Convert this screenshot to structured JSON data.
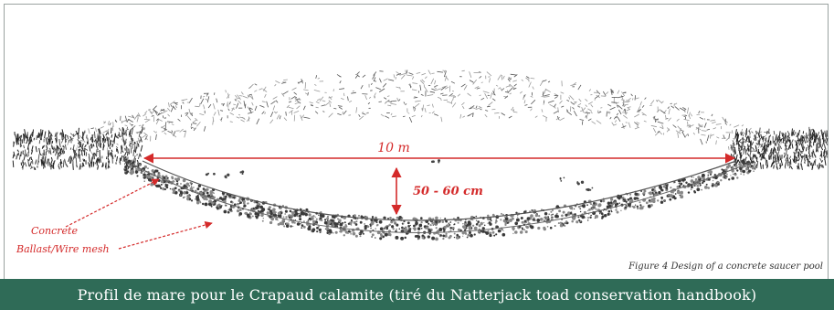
{
  "labels": {
    "width": "10 m",
    "depth": "50 - 60 cm",
    "concrete": "Concrete",
    "ballast": "Ballast/Wire mesh",
    "figure_caption": "Figure 4 Design of a concrete saucer pool"
  },
  "footer": {
    "caption": "Profil de mare pour le Crapaud calamite (tiré du Natterjack toad conservation handbook)"
  },
  "colors": {
    "annotation_red": "#d42a2a",
    "footer_bg": "#2f6b57",
    "footer_text": "#ffffff",
    "gravel": "#3a3a3a"
  }
}
